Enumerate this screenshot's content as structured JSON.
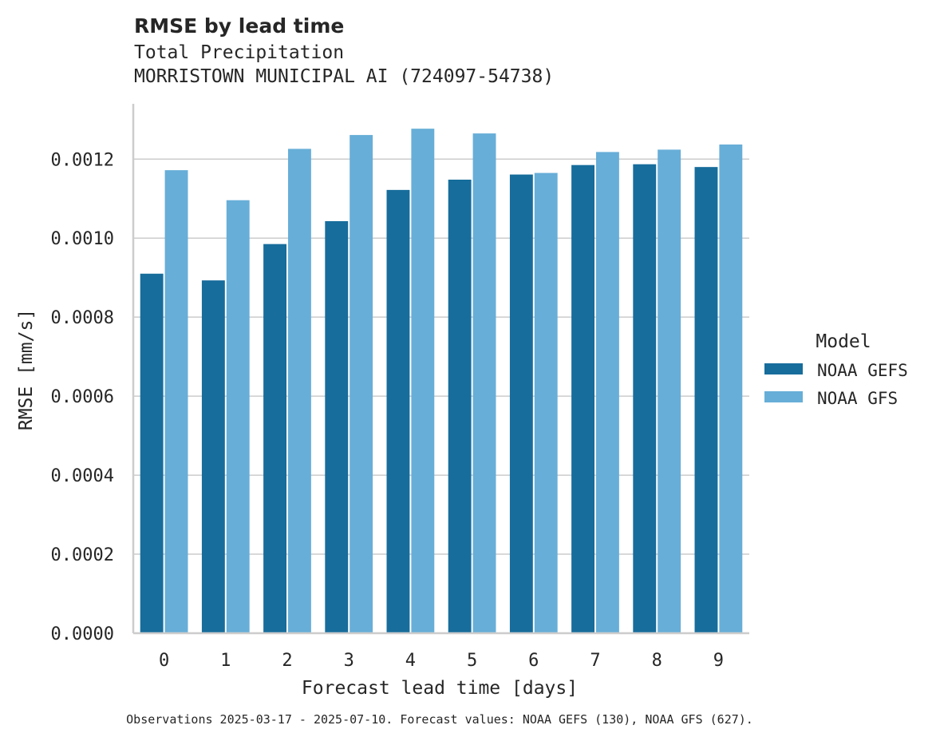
{
  "chart_data": {
    "type": "bar",
    "title": "RMSE by lead time",
    "subtitle_lines": [
      "Total Precipitation",
      "MORRISTOWN MUNICIPAL AI (724097-54738)"
    ],
    "xlabel": "Forecast lead time [days]",
    "ylabel": "RMSE [mm/s]",
    "categories": [
      "0",
      "1",
      "2",
      "3",
      "4",
      "5",
      "6",
      "7",
      "8",
      "9"
    ],
    "ylim": [
      0,
      0.00134
    ],
    "yticks": [
      "0.0000",
      "0.0002",
      "0.0004",
      "0.0006",
      "0.0008",
      "0.0010",
      "0.0012"
    ],
    "ytick_values": [
      0,
      0.0002,
      0.0004,
      0.0006,
      0.0008,
      0.001,
      0.0012
    ],
    "grid": "horizontal",
    "legend": {
      "title": "Model",
      "placement": "right"
    },
    "series": [
      {
        "name": "NOAA GEFS",
        "color": "#176d9c",
        "values": [
          0.00091,
          0.000893,
          0.000985,
          0.001043,
          0.001122,
          0.001148,
          0.001161,
          0.001185,
          0.001187,
          0.00118
        ]
      },
      {
        "name": "NOAA GFS",
        "color": "#67aed8",
        "values": [
          0.001172,
          0.001096,
          0.001226,
          0.001261,
          0.001277,
          0.001265,
          0.001165,
          0.001218,
          0.001224,
          0.001237
        ]
      }
    ],
    "footnote": "Observations 2025-03-17 - 2025-07-10. Forecast values: NOAA GEFS (130), NOAA GFS (627)."
  }
}
